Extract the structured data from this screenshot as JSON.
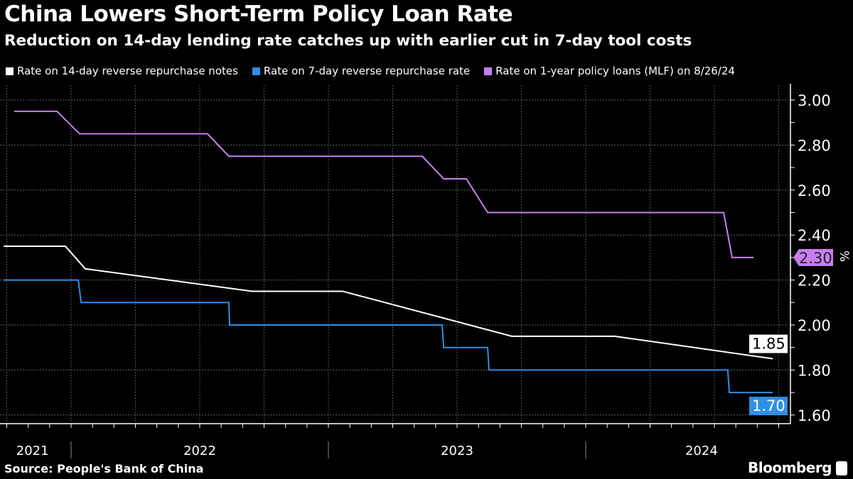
{
  "chart_data": {
    "type": "line",
    "title": "China Lowers Short-Term Policy Loan Rate",
    "subtitle": "Reduction on 14-day lending rate catches up with earlier cut in 7-day tool costs",
    "ylabel": "%",
    "ylim": [
      1.6,
      3.0
    ],
    "yticks": [
      "3.00",
      "2.80",
      "2.60",
      "2.40",
      "2.20",
      "2.00",
      "1.80",
      "1.60"
    ],
    "xticks": [
      "2021",
      "2022",
      "2023",
      "2024"
    ],
    "grid": true,
    "legend_placement": "top",
    "series": [
      {
        "name": "Rate on 14-day reverse repurchase notes",
        "color": "#ffffff",
        "last_label": "1.85",
        "x": [
          2021.738,
          2021.978,
          2022.055,
          2022.704,
          2023.055,
          2023.713,
          2024.113,
          2024.727
        ],
        "y": [
          2.35,
          2.35,
          2.25,
          2.15,
          2.15,
          1.95,
          1.95,
          1.85
        ]
      },
      {
        "name": "Rate on 7-day reverse repurchase rate",
        "color": "#2f8fe8",
        "last_label": "1.70",
        "x": [
          2021.738,
          2022.028,
          2022.039,
          2022.613,
          2022.616,
          2023.442,
          2023.448,
          2023.619,
          2023.624,
          2024.552,
          2024.558,
          2024.727
        ],
        "y": [
          2.2,
          2.2,
          2.1,
          2.1,
          2.0,
          2.0,
          1.9,
          1.9,
          1.8,
          1.8,
          1.7,
          1.7
        ]
      },
      {
        "name": "Rate on 1-year policy loans (MLF) on 8/26/24",
        "color": "#c77ef0",
        "last_label": "2.30",
        "x": [
          2021.779,
          2021.945,
          2022.033,
          2022.53,
          2022.613,
          2023.365,
          2023.448,
          2023.536,
          2023.619,
          2024.536,
          2024.569,
          2024.652
        ],
        "y": [
          2.95,
          2.95,
          2.85,
          2.85,
          2.75,
          2.75,
          2.65,
          2.65,
          2.5,
          2.5,
          2.3,
          2.3
        ]
      }
    ]
  },
  "footer": {
    "source": "Source: People's Bank of China",
    "brand": "Bloomberg"
  }
}
